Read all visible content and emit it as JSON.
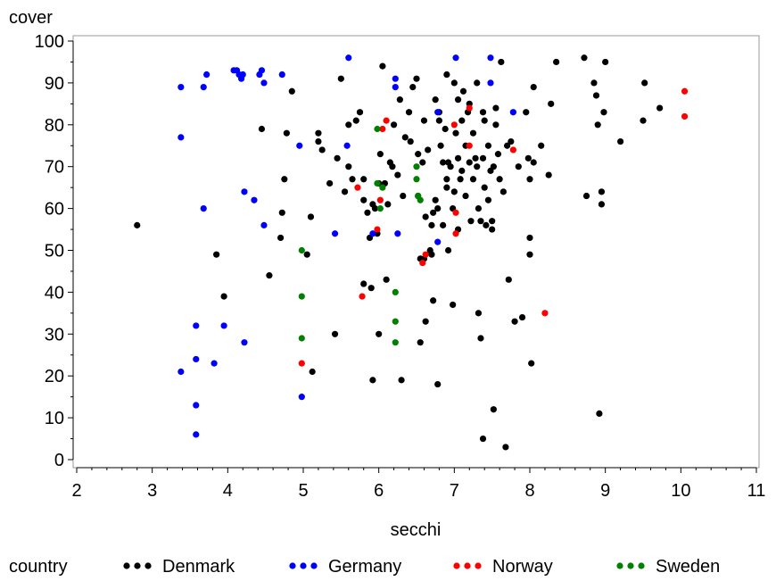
{
  "chart_data": {
    "type": "scatter",
    "title": "",
    "xlabel": "secchi",
    "ylabel": "cover",
    "xlim": [
      2,
      11
    ],
    "ylim": [
      0,
      100
    ],
    "xticks": [
      "2",
      "3",
      "4",
      "5",
      "6",
      "7",
      "8",
      "9",
      "10",
      "11"
    ],
    "yticks": [
      "0",
      "10",
      "20",
      "30",
      "40",
      "50",
      "60",
      "70",
      "80",
      "90",
      "100"
    ],
    "legend": {
      "title": "country",
      "placement": "bottom"
    },
    "series": [
      {
        "name": "Denmark",
        "color": "#000000",
        "points": [
          [
            2.8,
            56
          ],
          [
            3.85,
            49
          ],
          [
            3.95,
            39
          ],
          [
            4.55,
            44
          ],
          [
            4.7,
            53
          ],
          [
            4.72,
            59
          ],
          [
            4.75,
            67
          ],
          [
            4.78,
            78
          ],
          [
            4.85,
            88
          ],
          [
            4.45,
            79
          ],
          [
            5.05,
            49
          ],
          [
            5.1,
            58
          ],
          [
            5.12,
            21
          ],
          [
            5.2,
            78
          ],
          [
            5.2,
            76
          ],
          [
            5.25,
            74
          ],
          [
            5.35,
            66
          ],
          [
            5.42,
            30
          ],
          [
            5.45,
            72
          ],
          [
            5.5,
            91
          ],
          [
            5.55,
            64
          ],
          [
            5.6,
            70
          ],
          [
            5.6,
            80
          ],
          [
            5.65,
            67
          ],
          [
            5.7,
            81
          ],
          [
            5.75,
            83
          ],
          [
            5.8,
            62
          ],
          [
            5.8,
            67
          ],
          [
            5.8,
            42
          ],
          [
            5.85,
            59
          ],
          [
            5.88,
            53
          ],
          [
            5.9,
            41
          ],
          [
            5.92,
            61
          ],
          [
            5.92,
            19
          ],
          [
            5.95,
            60
          ],
          [
            5.98,
            54
          ],
          [
            6.0,
            66
          ],
          [
            6.0,
            30
          ],
          [
            6.02,
            73
          ],
          [
            6.05,
            94
          ],
          [
            6.08,
            66
          ],
          [
            6.1,
            43
          ],
          [
            6.12,
            61
          ],
          [
            6.15,
            71
          ],
          [
            6.18,
            70
          ],
          [
            6.2,
            80
          ],
          [
            6.25,
            68
          ],
          [
            6.28,
            86
          ],
          [
            6.3,
            19
          ],
          [
            6.32,
            63
          ],
          [
            6.35,
            77
          ],
          [
            6.4,
            83
          ],
          [
            6.42,
            76
          ],
          [
            6.45,
            89
          ],
          [
            6.5,
            91
          ],
          [
            6.52,
            73
          ],
          [
            6.52,
            63
          ],
          [
            6.55,
            48
          ],
          [
            6.55,
            28
          ],
          [
            6.58,
            71
          ],
          [
            6.6,
            81
          ],
          [
            6.6,
            48
          ],
          [
            6.62,
            58
          ],
          [
            6.62,
            33
          ],
          [
            6.65,
            74
          ],
          [
            6.68,
            50
          ],
          [
            6.7,
            49
          ],
          [
            6.7,
            56
          ],
          [
            6.72,
            59
          ],
          [
            6.72,
            38
          ],
          [
            6.75,
            86
          ],
          [
            6.75,
            62
          ],
          [
            6.78,
            60
          ],
          [
            6.78,
            18
          ],
          [
            6.8,
            83
          ],
          [
            6.8,
            81
          ],
          [
            6.82,
            75
          ],
          [
            6.85,
            71
          ],
          [
            6.85,
            56
          ],
          [
            6.88,
            79
          ],
          [
            6.9,
            92
          ],
          [
            6.9,
            67
          ],
          [
            6.9,
            65
          ],
          [
            6.92,
            71
          ],
          [
            6.92,
            50
          ],
          [
            6.95,
            70
          ],
          [
            6.98,
            60
          ],
          [
            6.98,
            37
          ],
          [
            7.0,
            90
          ],
          [
            7.0,
            64
          ],
          [
            7.02,
            78
          ],
          [
            7.05,
            86
          ],
          [
            7.05,
            72
          ],
          [
            7.05,
            55
          ],
          [
            7.08,
            67
          ],
          [
            7.1,
            81
          ],
          [
            7.1,
            69
          ],
          [
            7.12,
            88
          ],
          [
            7.15,
            75
          ],
          [
            7.15,
            63
          ],
          [
            7.18,
            83
          ],
          [
            7.2,
            71
          ],
          [
            7.2,
            85
          ],
          [
            7.22,
            57
          ],
          [
            7.25,
            78
          ],
          [
            7.25,
            67
          ],
          [
            7.28,
            72
          ],
          [
            7.3,
            90
          ],
          [
            7.3,
            70
          ],
          [
            7.32,
            60
          ],
          [
            7.32,
            35
          ],
          [
            7.35,
            57
          ],
          [
            7.35,
            29
          ],
          [
            7.38,
            83
          ],
          [
            7.38,
            72
          ],
          [
            7.38,
            5
          ],
          [
            7.4,
            81
          ],
          [
            7.4,
            65
          ],
          [
            7.42,
            56
          ],
          [
            7.45,
            75
          ],
          [
            7.45,
            62
          ],
          [
            7.48,
            69
          ],
          [
            7.5,
            57
          ],
          [
            7.5,
            55
          ],
          [
            7.52,
            70
          ],
          [
            7.52,
            12
          ],
          [
            7.55,
            84
          ],
          [
            7.55,
            80
          ],
          [
            7.58,
            73
          ],
          [
            7.6,
            67
          ],
          [
            7.62,
            95
          ],
          [
            7.65,
            64
          ],
          [
            7.68,
            3
          ],
          [
            7.7,
            75
          ],
          [
            7.72,
            43
          ],
          [
            7.75,
            76
          ],
          [
            7.8,
            33
          ],
          [
            7.85,
            70
          ],
          [
            7.9,
            34
          ],
          [
            7.95,
            83
          ],
          [
            7.98,
            72
          ],
          [
            8.0,
            67
          ],
          [
            8.0,
            53
          ],
          [
            8.0,
            49
          ],
          [
            8.02,
            23
          ],
          [
            8.05,
            89
          ],
          [
            8.05,
            71
          ],
          [
            8.15,
            75
          ],
          [
            8.25,
            68
          ],
          [
            8.28,
            85
          ],
          [
            8.35,
            95
          ],
          [
            8.72,
            96
          ],
          [
            8.75,
            63
          ],
          [
            8.85,
            90
          ],
          [
            8.88,
            87
          ],
          [
            8.9,
            80
          ],
          [
            8.92,
            11
          ],
          [
            8.95,
            64
          ],
          [
            8.95,
            61
          ],
          [
            8.98,
            83
          ],
          [
            9.0,
            95
          ],
          [
            9.2,
            76
          ],
          [
            9.5,
            81
          ],
          [
            9.52,
            90
          ],
          [
            9.72,
            84
          ]
        ]
      },
      {
        "name": "Germany",
        "color": "#0000ff",
        "points": [
          [
            3.38,
            89
          ],
          [
            3.38,
            77
          ],
          [
            3.38,
            21
          ],
          [
            3.58,
            32
          ],
          [
            3.58,
            24
          ],
          [
            3.58,
            13
          ],
          [
            3.58,
            6
          ],
          [
            3.68,
            89
          ],
          [
            3.68,
            60
          ],
          [
            3.72,
            92
          ],
          [
            3.82,
            23
          ],
          [
            3.95,
            32
          ],
          [
            4.08,
            93
          ],
          [
            4.12,
            93
          ],
          [
            4.15,
            92
          ],
          [
            4.18,
            91
          ],
          [
            4.2,
            92
          ],
          [
            4.22,
            28
          ],
          [
            4.22,
            64
          ],
          [
            4.35,
            62
          ],
          [
            4.42,
            92
          ],
          [
            4.45,
            93
          ],
          [
            4.48,
            90
          ],
          [
            4.48,
            56
          ],
          [
            4.72,
            92
          ],
          [
            4.95,
            75
          ],
          [
            4.98,
            15
          ],
          [
            5.42,
            54
          ],
          [
            5.58,
            75
          ],
          [
            5.6,
            96
          ],
          [
            5.92,
            54
          ],
          [
            6.22,
            89
          ],
          [
            6.22,
            91
          ],
          [
            6.25,
            54
          ],
          [
            6.78,
            83
          ],
          [
            6.78,
            52
          ],
          [
            7.02,
            96
          ],
          [
            7.48,
            96
          ],
          [
            7.48,
            90
          ],
          [
            7.78,
            83
          ]
        ]
      },
      {
        "name": "Norway",
        "color": "#ff0000",
        "points": [
          [
            4.98,
            23
          ],
          [
            5.72,
            65
          ],
          [
            5.78,
            39
          ],
          [
            5.98,
            55
          ],
          [
            6.02,
            62
          ],
          [
            6.05,
            79
          ],
          [
            6.1,
            81
          ],
          [
            6.58,
            47
          ],
          [
            6.62,
            49
          ],
          [
            7.0,
            80
          ],
          [
            7.02,
            54
          ],
          [
            7.02,
            59
          ],
          [
            7.2,
            84
          ],
          [
            7.2,
            75
          ],
          [
            7.78,
            74
          ],
          [
            8.2,
            35
          ],
          [
            10.05,
            88
          ],
          [
            10.05,
            82
          ]
        ]
      },
      {
        "name": "Sweden",
        "color": "#008000",
        "points": [
          [
            4.98,
            50
          ],
          [
            4.98,
            39
          ],
          [
            4.98,
            29
          ],
          [
            5.98,
            79
          ],
          [
            5.98,
            66
          ],
          [
            6.02,
            60
          ],
          [
            6.05,
            65
          ],
          [
            6.5,
            70
          ],
          [
            6.5,
            67
          ],
          [
            6.52,
            63
          ],
          [
            6.55,
            62
          ],
          [
            6.22,
            40
          ],
          [
            6.22,
            33
          ],
          [
            6.22,
            28
          ]
        ]
      }
    ]
  }
}
